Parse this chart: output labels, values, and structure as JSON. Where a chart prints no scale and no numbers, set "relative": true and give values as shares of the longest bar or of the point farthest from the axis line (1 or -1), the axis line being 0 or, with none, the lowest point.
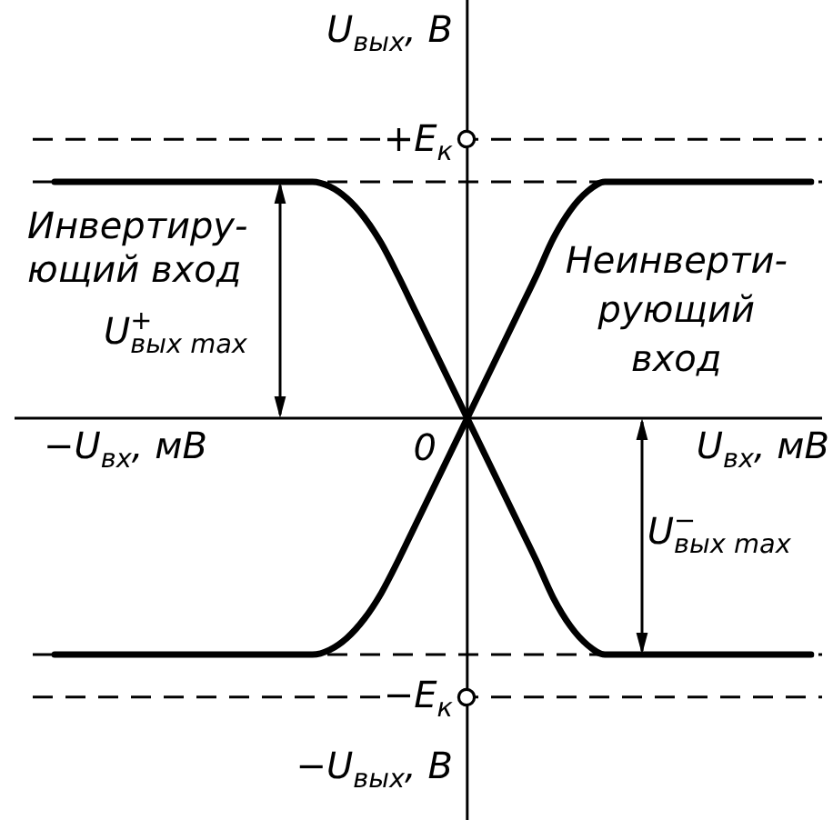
{
  "chart_data": {
    "type": "line",
    "relative": true,
    "xlabel": "U$_{вх}$, мВ",
    "ylabel": "U$_{вых}$, В",
    "categories": [
      null,
      null,
      null,
      null,
      null,
      null,
      null,
      null,
      null,
      null,
      null,
      null,
      null,
      null,
      null,
      null,
      null,
      null,
      null,
      null,
      null,
      null,
      null,
      null,
      null,
      null,
      null,
      null,
      null,
      null,
      null,
      null,
      null,
      null,
      null,
      null,
      null,
      null,
      null,
      null,
      null,
      null,
      null,
      null,
      null
    ],
    "series": [
      {
        "name": "Инвертиру-\nющий вход",
        "color": "#000000",
        "values": [
          1,
          1,
          1,
          1,
          1,
          1,
          1,
          1,
          1,
          1,
          1,
          1,
          1,
          1,
          1,
          1,
          0.98,
          0.93,
          0.85,
          0.74,
          0.6,
          0.45,
          0.3,
          0.15,
          0,
          -0.15,
          -0.3,
          -0.45,
          -0.6,
          -0.76,
          -0.88,
          -0.96,
          -1,
          -1,
          -1,
          -1,
          -1,
          -1,
          -1,
          -1,
          -1,
          -1,
          -1,
          -1,
          -1
        ]
      },
      {
        "name": "Неинверти-\nрующий\nвход",
        "color": "#000000",
        "values": [
          -1,
          -1,
          -1,
          -1,
          -1,
          -1,
          -1,
          -1,
          -1,
          -1,
          -1,
          -1,
          -1,
          -1,
          -1,
          -1,
          -0.98,
          -0.93,
          -0.85,
          -0.74,
          -0.6,
          -0.45,
          -0.3,
          -0.15,
          0,
          0.15,
          0.3,
          0.45,
          0.6,
          0.76,
          0.88,
          0.96,
          1,
          1,
          1,
          1,
          1,
          1,
          1,
          1,
          1,
          1,
          1,
          1,
          1
        ]
      }
    ],
    "ref_lines": [
      {
        "axis": "y",
        "value": 1.18,
        "label": "+E$_{к}$",
        "color": "#000000",
        "line_style": "dashed"
      },
      {
        "axis": "y",
        "value": -1.18,
        "label": "−E$_{к}$",
        "color": "#000000",
        "line_style": "dashed"
      },
      {
        "axis": "y",
        "value": 1,
        "color": "#000000",
        "line_style": "dashed"
      },
      {
        "axis": "y",
        "value": -1,
        "color": "#000000",
        "line_style": "dashed"
      }
    ],
    "annotations": [
      "−U$_{вх}$, мВ",
      "−U$_{вых}$, В",
      "0",
      "U$^{+}$$_{вых max}$",
      "U$^{−}$$_{вых max}$"
    ],
    "legend": false,
    "marker": "none",
    "line_style": "solid"
  }
}
